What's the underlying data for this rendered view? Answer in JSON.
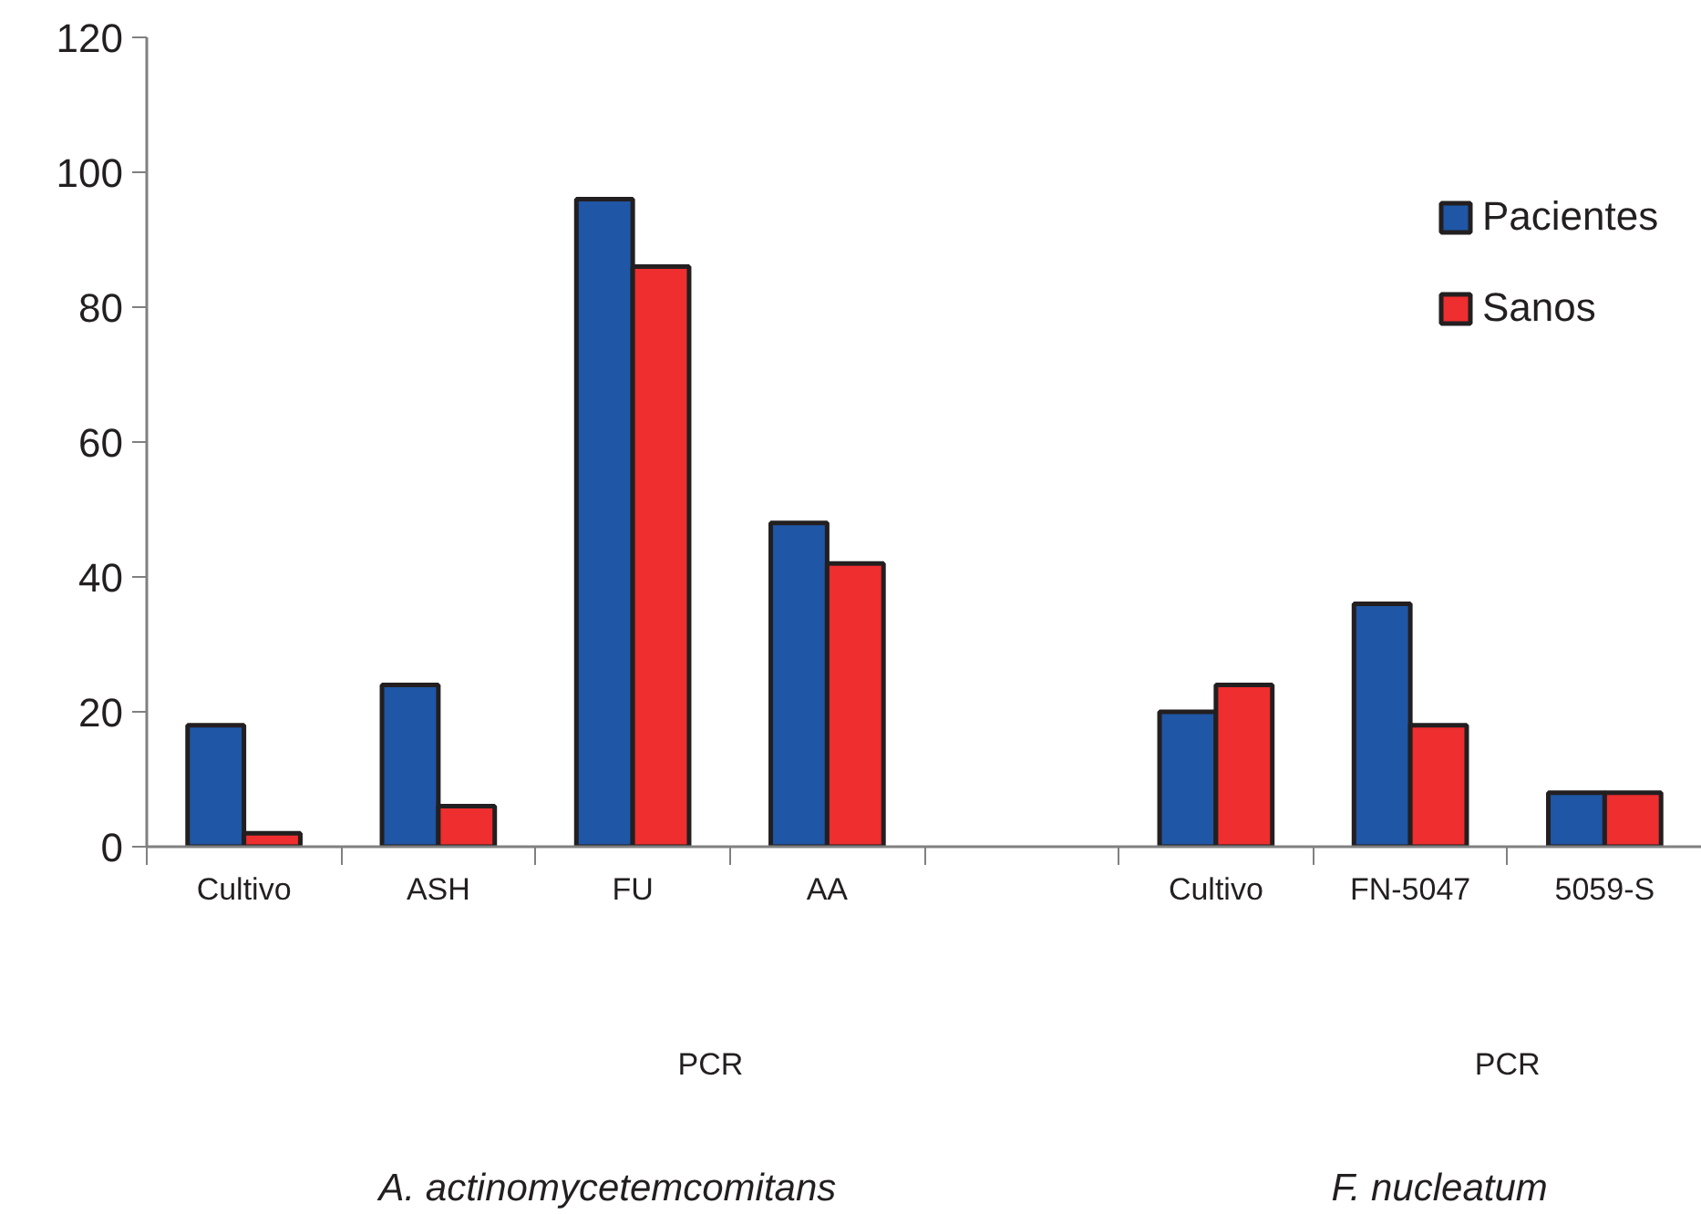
{
  "chart_data": {
    "type": "bar",
    "categories": [
      "Cultivo",
      "ASH",
      "FU",
      "AA",
      null,
      "Cultivo",
      "FN-5047",
      "5059-S"
    ],
    "series": [
      {
        "name": "Pacientes",
        "color": "#1f56a5",
        "values": [
          18,
          24,
          96,
          48,
          null,
          20,
          36,
          8
        ]
      },
      {
        "name": "Sanos",
        "color": "#ee2e2f",
        "values": [
          2,
          6,
          86,
          42,
          null,
          24,
          18,
          8
        ]
      }
    ],
    "ylim": [
      0,
      120
    ],
    "yticks": [
      0,
      20,
      40,
      60,
      80,
      100,
      120
    ],
    "grid": false,
    "legend": "top right",
    "annotations": [
      "PCR",
      "PCR",
      "A. actinomycetemcomitans",
      "F. nucleatum"
    ]
  }
}
